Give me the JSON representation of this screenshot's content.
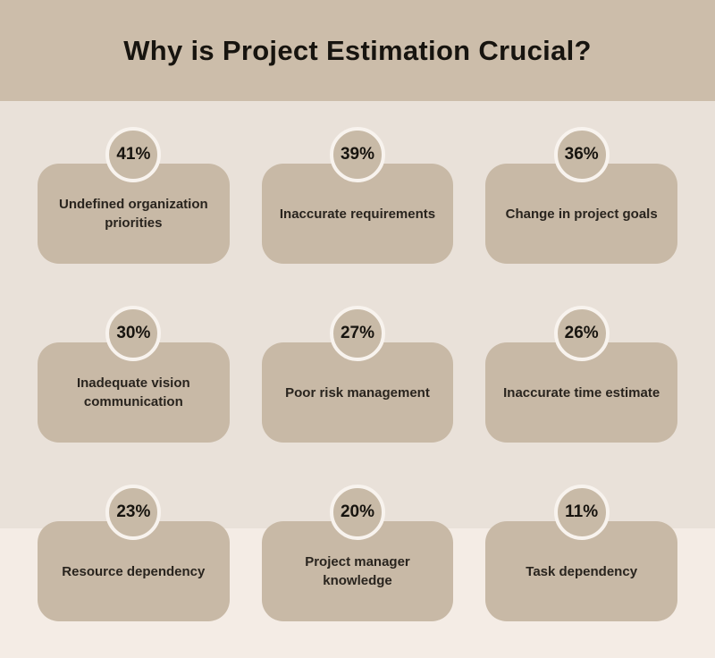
{
  "page": {
    "title": "Why is Project Estimation Crucial?"
  },
  "colors": {
    "header_bg": "#ccbdaa",
    "body_bg": "#e9e1d9",
    "footer_bg": "#f4ece5",
    "card_bg": "#c8b9a6",
    "circle_bg": "#c8baa7",
    "circle_ring": "#f8f3ee",
    "text_dark": "#17140f"
  },
  "cards": [
    {
      "percent": "41%",
      "label": "Undefined organization priorities"
    },
    {
      "percent": "39%",
      "label": "Inaccurate requirements"
    },
    {
      "percent": "36%",
      "label": "Change in project goals"
    },
    {
      "percent": "30%",
      "label": "Inadequate vision communication"
    },
    {
      "percent": "27%",
      "label": "Poor risk management"
    },
    {
      "percent": "26%",
      "label": "Inaccurate time estimate"
    },
    {
      "percent": "23%",
      "label": "Resource dependency"
    },
    {
      "percent": "20%",
      "label": "Project manager knowledge"
    },
    {
      "percent": "11%",
      "label": "Task dependency"
    }
  ],
  "chart_data": {
    "type": "table",
    "title": "Why is Project Estimation Crucial?",
    "categories": [
      "Undefined organization priorities",
      "Inaccurate requirements",
      "Change in project goals",
      "Inadequate vision communication",
      "Poor risk management",
      "Inaccurate time estimate",
      "Resource dependency",
      "Project manager knowledge",
      "Task dependency"
    ],
    "values": [
      41,
      39,
      36,
      30,
      27,
      26,
      23,
      20,
      11
    ],
    "unit": "%",
    "layout": "3x3-grid-of-stat-cards"
  }
}
